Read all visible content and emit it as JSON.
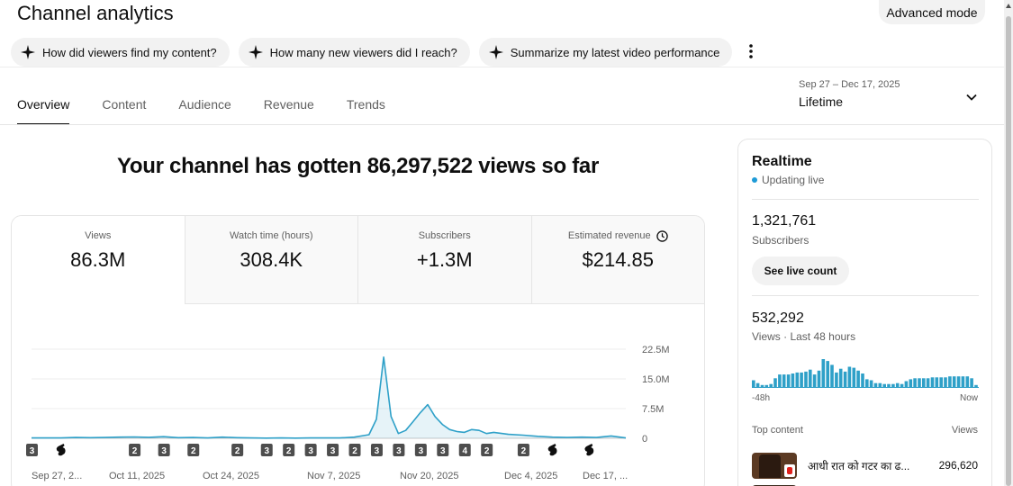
{
  "header": {
    "title": "Channel analytics",
    "advanced_mode": "Advanced mode"
  },
  "chips": [
    {
      "label": "How did viewers find my content?"
    },
    {
      "label": "How many new viewers did I reach?"
    },
    {
      "label": "Summarize my latest video performance"
    }
  ],
  "tabs": [
    {
      "label": "Overview",
      "active": true
    },
    {
      "label": "Content"
    },
    {
      "label": "Audience"
    },
    {
      "label": "Revenue"
    },
    {
      "label": "Trends"
    }
  ],
  "date_range": {
    "dates": "Sep 27 – Dec 17, 2025",
    "label": "Lifetime"
  },
  "headline": "Your channel has gotten 86,297,522 views so far",
  "metrics": [
    {
      "label": "Views",
      "value": "86.3M",
      "active": true
    },
    {
      "label": "Watch time (hours)",
      "value": "308.4K"
    },
    {
      "label": "Subscribers",
      "value": "+1.3M"
    },
    {
      "label": "Estimated revenue",
      "value": "$214.85",
      "icon": "clock-icon"
    }
  ],
  "chart_data": {
    "type": "area",
    "series": [
      {
        "color": "#2ea0c8",
        "x": [
          "Sep 27",
          "Sep 29",
          "Oct 1",
          "Oct 3",
          "Oct 5",
          "Oct 7",
          "Oct 9",
          "Oct 11",
          "Oct 13",
          "Oct 15",
          "Oct 17",
          "Oct 19",
          "Oct 21",
          "Oct 23",
          "Oct 25",
          "Oct 27",
          "Oct 29",
          "Oct 31",
          "Nov 2",
          "Nov 4",
          "Nov 6",
          "Nov 8",
          "Nov 10",
          "Nov 12",
          "Nov 13",
          "Nov 14",
          "Nov 15",
          "Nov 16",
          "Nov 17",
          "Nov 18",
          "Nov 19",
          "Nov 20",
          "Nov 21",
          "Nov 22",
          "Nov 23",
          "Nov 24",
          "Nov 25",
          "Nov 26",
          "Nov 27",
          "Nov 28",
          "Nov 29",
          "Dec 1",
          "Dec 3",
          "Dec 5",
          "Dec 7",
          "Dec 9",
          "Dec 11",
          "Dec 13",
          "Dec 15",
          "Dec 17"
        ],
        "values": [
          0.1,
          0.1,
          0.1,
          0.2,
          0.15,
          0.2,
          0.3,
          0.35,
          0.25,
          0.4,
          0.15,
          0.2,
          0.1,
          0.3,
          0.15,
          0.1,
          0.05,
          0.1,
          0.05,
          0.1,
          0.1,
          0.1,
          0.3,
          0.9,
          4.8,
          20.5,
          5.5,
          1.2,
          2.0,
          4.2,
          6.5,
          8.5,
          5.5,
          3.5,
          2.2,
          1.7,
          1.5,
          2.2,
          2.0,
          1.2,
          1.5,
          1.0,
          0.8,
          0.5,
          0.3,
          0.2,
          0.3,
          0.2,
          0.6,
          0.1
        ]
      }
    ],
    "x_ticks": [
      "Sep 27, 2...",
      "Oct 11, 2025",
      "Oct 24, 2025",
      "Nov 7, 2025",
      "Nov 20, 2025",
      "Dec 4, 2025",
      "Dec 17, ..."
    ],
    "y_ticks": [
      "22.5M",
      "15.0M",
      "7.5M",
      "0"
    ],
    "ylim": [
      0,
      22.5
    ],
    "y_unit": "millions of views",
    "grid": true,
    "markers": [
      {
        "label": "3",
        "date": "Sep 27"
      },
      {
        "label": "shorts",
        "date": "Oct 1"
      },
      {
        "label": "2",
        "date": "Oct 11"
      },
      {
        "label": "3",
        "date": "Oct 15"
      },
      {
        "label": "2",
        "date": "Oct 19"
      },
      {
        "label": "2",
        "date": "Oct 25"
      },
      {
        "label": "3",
        "date": "Oct 29"
      },
      {
        "label": "2",
        "date": "Nov 1"
      },
      {
        "label": "3",
        "date": "Nov 4"
      },
      {
        "label": "3",
        "date": "Nov 7"
      },
      {
        "label": "2",
        "date": "Nov 10"
      },
      {
        "label": "3",
        "date": "Nov 13"
      },
      {
        "label": "3",
        "date": "Nov 16"
      },
      {
        "label": "3",
        "date": "Nov 19"
      },
      {
        "label": "3",
        "date": "Nov 22"
      },
      {
        "label": "4",
        "date": "Nov 25"
      },
      {
        "label": "2",
        "date": "Nov 28"
      },
      {
        "label": "2",
        "date": "Dec 3"
      },
      {
        "label": "shorts",
        "date": "Dec 7"
      },
      {
        "label": "shorts",
        "date": "Dec 12"
      }
    ]
  },
  "realtime": {
    "title": "Realtime",
    "status": "Updating live",
    "subscribers_value": "1,321,761",
    "subscribers_label": "Subscribers",
    "live_count_button": "See live count",
    "views_value": "532,292",
    "views_label": "Views · Last 48 hours",
    "bars_start_label": "-48h",
    "bars_end_label": "Now",
    "bars": [
      8,
      5,
      3,
      3,
      4,
      10,
      14,
      14,
      14,
      15,
      16,
      16,
      17,
      19,
      14,
      18,
      30,
      28,
      24,
      16,
      20,
      17,
      22,
      21,
      18,
      15,
      9,
      8,
      5,
      5,
      4,
      4,
      4,
      5,
      4,
      7,
      9,
      10,
      10,
      10,
      10,
      11,
      11,
      11,
      11,
      12,
      12,
      12,
      12,
      12,
      10,
      3
    ],
    "top_content_label": "Top content",
    "top_views_label": "Views",
    "top_video_title": "आधी रात को गटर का ढ...",
    "top_video_views": "296,620"
  }
}
